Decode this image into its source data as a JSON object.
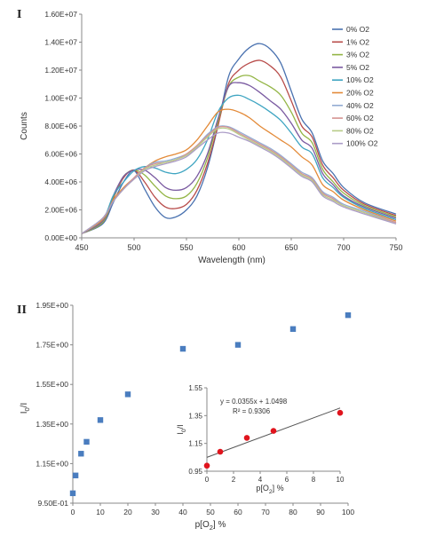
{
  "panels": {
    "top_label": "I",
    "bottom_label": "II"
  },
  "chart_data": [
    {
      "type": "line",
      "title": "",
      "xlabel": "Wavelength (nm)",
      "ylabel": "Counts",
      "xlim": [
        450,
        750
      ],
      "ylim": [
        0,
        16000000
      ],
      "xticks": [
        450,
        500,
        550,
        600,
        650,
        700,
        750
      ],
      "xtick_labels": [
        "450",
        "500",
        "550",
        "600",
        "650",
        "700",
        "750"
      ],
      "yticks": [
        0,
        2000000,
        4000000,
        6000000,
        8000000,
        10000000,
        12000000,
        14000000,
        16000000
      ],
      "ytick_labels": [
        "0.00E+00",
        "2.00E+06",
        "4.00E+06",
        "6.00E+06",
        "8.00E+06",
        "1.00E+07",
        "1.20E+07",
        "1.40E+07",
        "1.60E+07"
      ],
      "grid": false,
      "legend": "right",
      "x": [
        450,
        470,
        480,
        490,
        500,
        510,
        520,
        530,
        540,
        550,
        560,
        570,
        580,
        590,
        600,
        610,
        620,
        630,
        640,
        650,
        660,
        670,
        680,
        690,
        700,
        720,
        750
      ],
      "series": [
        {
          "name": "0% O2",
          "color": "#4a72b0",
          "values": [
            0.3,
            1.0,
            2.5,
            4.0,
            4.8,
            3.5,
            2.2,
            1.45,
            1.5,
            2.0,
            3.0,
            5.0,
            8.0,
            11.5,
            12.8,
            13.6,
            13.9,
            13.5,
            12.5,
            10.5,
            8.5,
            7.5,
            5.5,
            4.6,
            3.6,
            2.5,
            1.7
          ]
        },
        {
          "name": "1% O2",
          "color": "#b84c4a",
          "values": [
            0.3,
            1.1,
            2.8,
            4.3,
            4.85,
            4.0,
            2.9,
            2.2,
            2.1,
            2.4,
            3.4,
            5.3,
            8.0,
            11.0,
            12.0,
            12.5,
            12.7,
            12.3,
            11.5,
            9.8,
            8.0,
            7.2,
            5.2,
            4.3,
            3.4,
            2.4,
            1.6
          ]
        },
        {
          "name": "3% O2",
          "color": "#93b545",
          "values": [
            0.3,
            1.1,
            2.9,
            4.4,
            4.85,
            4.5,
            3.7,
            3.0,
            2.8,
            3.0,
            3.9,
            5.7,
            8.3,
            10.8,
            11.5,
            11.6,
            11.2,
            10.8,
            10.2,
            9.0,
            7.5,
            6.8,
            4.9,
            4.0,
            3.2,
            2.3,
            1.5
          ]
        },
        {
          "name": "5% O2",
          "color": "#7a5aa1",
          "values": [
            0.3,
            1.2,
            3.0,
            4.4,
            4.85,
            4.85,
            4.3,
            3.6,
            3.4,
            3.6,
            4.4,
            6.0,
            8.5,
            10.8,
            11.1,
            10.9,
            10.4,
            9.8,
            9.2,
            8.2,
            7.0,
            6.4,
            4.6,
            3.8,
            3.0,
            2.2,
            1.4
          ]
        },
        {
          "name": "10% O2",
          "color": "#3fa5c2",
          "values": [
            0.3,
            1.3,
            3.0,
            4.0,
            4.8,
            5.1,
            5.0,
            4.7,
            4.6,
            4.9,
            5.6,
            7.0,
            9.0,
            10.0,
            10.2,
            9.9,
            9.5,
            9.0,
            8.4,
            7.5,
            6.5,
            6.0,
            4.3,
            3.6,
            2.9,
            2.1,
            1.3
          ]
        },
        {
          "name": "20% O2",
          "color": "#e38a38",
          "values": [
            0.3,
            1.3,
            2.7,
            3.6,
            4.3,
            5.0,
            5.5,
            5.8,
            6.0,
            6.3,
            7.0,
            8.0,
            9.0,
            9.2,
            9.0,
            8.6,
            8.0,
            7.5,
            7.0,
            6.5,
            5.8,
            5.2,
            3.8,
            3.3,
            2.7,
            2.0,
            1.2
          ]
        },
        {
          "name": "40% O2",
          "color": "#93acd3",
          "values": [
            0.3,
            1.4,
            2.6,
            3.5,
            4.3,
            5.0,
            5.4,
            5.5,
            5.7,
            6.0,
            6.6,
            7.4,
            7.95,
            7.95,
            7.6,
            7.2,
            6.8,
            6.4,
            5.9,
            5.3,
            4.7,
            4.3,
            3.3,
            2.9,
            2.4,
            1.9,
            1.1
          ]
        },
        {
          "name": "60% O2",
          "color": "#d59392",
          "values": [
            0.3,
            1.4,
            2.6,
            3.5,
            4.3,
            5.0,
            5.3,
            5.4,
            5.6,
            6.0,
            6.6,
            7.3,
            7.9,
            7.9,
            7.5,
            7.1,
            6.7,
            6.3,
            5.8,
            5.2,
            4.6,
            4.2,
            3.2,
            2.8,
            2.3,
            1.8,
            1.1
          ]
        },
        {
          "name": "80% O2",
          "color": "#b8cc88",
          "values": [
            0.3,
            1.4,
            2.6,
            3.5,
            4.2,
            4.9,
            5.2,
            5.4,
            5.6,
            5.9,
            6.5,
            7.2,
            7.8,
            7.8,
            7.4,
            7.0,
            6.6,
            6.2,
            5.7,
            5.1,
            4.5,
            4.1,
            3.1,
            2.7,
            2.3,
            1.8,
            1.0
          ]
        },
        {
          "name": "100% O2",
          "color": "#ab9cc7",
          "values": [
            0.3,
            1.4,
            2.6,
            3.5,
            4.2,
            4.8,
            5.1,
            5.3,
            5.5,
            5.8,
            6.4,
            7.0,
            7.5,
            7.5,
            7.2,
            6.9,
            6.5,
            6.1,
            5.6,
            5.0,
            4.4,
            4.0,
            3.0,
            2.6,
            2.2,
            1.7,
            1.0
          ]
        }
      ]
    },
    {
      "type": "scatter",
      "title": "",
      "xlabel": "p[O2] %",
      "ylabel": "I0/I",
      "xlim": [
        0,
        100
      ],
      "ylim": [
        0.95,
        1.95
      ],
      "xticks": [
        0,
        10,
        20,
        30,
        40,
        50,
        60,
        70,
        80,
        90,
        100
      ],
      "xtick_labels": [
        "0",
        "10",
        "20",
        "30",
        "40",
        "50",
        "60",
        "70",
        "80",
        "90",
        "100"
      ],
      "yticks": [
        0.95,
        1.15,
        1.35,
        1.55,
        1.75,
        1.95
      ],
      "ytick_labels": [
        "9.50E-01",
        "1.15E+00",
        "1.35E+00",
        "1.55E+00",
        "1.75E+00",
        "1.95E+00"
      ],
      "grid": false,
      "marker_color": "#4a7dbf",
      "x": [
        0,
        1,
        3,
        5,
        10,
        20,
        40,
        60,
        80,
        100
      ],
      "values": [
        1.0,
        1.09,
        1.2,
        1.26,
        1.37,
        1.5,
        1.73,
        1.75,
        1.83,
        1.9
      ]
    },
    {
      "type": "scatter",
      "title": "",
      "xlabel": "p[O2] %",
      "ylabel": "I0/I",
      "xlim": [
        0,
        10
      ],
      "ylim": [
        0.95,
        1.55
      ],
      "xticks": [
        0,
        2,
        4,
        6,
        8,
        10
      ],
      "xtick_labels": [
        "0",
        "2",
        "4",
        "6",
        "8",
        "10"
      ],
      "yticks": [
        0.95,
        1.15,
        1.35,
        1.55
      ],
      "ytick_labels": [
        "0.95",
        "1.15",
        "1.35",
        "1.55"
      ],
      "grid": false,
      "marker_color": "#e0141d",
      "x": [
        0,
        1,
        3,
        5,
        10
      ],
      "values": [
        0.99,
        1.09,
        1.19,
        1.24,
        1.37
      ],
      "trendline": {
        "slope": 0.0355,
        "intercept": 1.0498,
        "color": "#555555"
      },
      "annotations": [
        "y = 0.0355x + 1.0498",
        "R² = 0.9306"
      ]
    }
  ]
}
